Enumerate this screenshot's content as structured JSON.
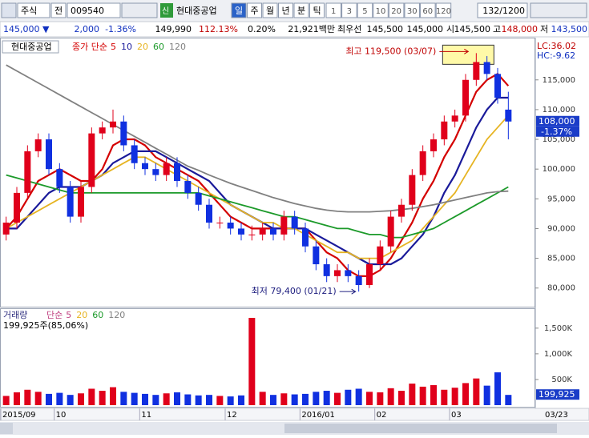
{
  "toolbar": {
    "market": "주식",
    "prefix": "전",
    "code": "009540",
    "badge": "신",
    "name": "현대중공업",
    "periods": [
      "일",
      "주",
      "월",
      "년",
      "분",
      "틱"
    ],
    "intervals": [
      "1",
      "3",
      "5",
      "10",
      "20",
      "30",
      "60",
      "120"
    ],
    "count": "132/1200"
  },
  "quote": {
    "price": "145,000 ▼",
    "change": "2,000",
    "change_rate": "-1.36%",
    "volume_prev": "149,990",
    "volume_ratio": "112.13%",
    "turnover": "0.20%",
    "amount": "21,921백만",
    "best_label": "최우선",
    "ask": "145,500",
    "bid": "145,000",
    "open_label": "시",
    "open": "145,500",
    "high_label": "고",
    "high": "148,000",
    "low_label": "저",
    "low": "143,500"
  },
  "chart_data": [
    {
      "type": "candlestick",
      "title": "현대중공업",
      "ma_prefix": "종가 단순",
      "categories": [
        "2015/09",
        null,
        null,
        null,
        null,
        "10",
        null,
        null,
        null,
        null,
        null,
        null,
        null,
        "11",
        null,
        null,
        null,
        null,
        null,
        null,
        null,
        "12",
        null,
        null,
        null,
        null,
        null,
        null,
        "2016/01",
        null,
        null,
        null,
        null,
        null,
        null,
        "02",
        null,
        null,
        null,
        null,
        null,
        null,
        "03",
        null,
        null,
        null,
        null,
        null
      ],
      "x_end_label": "03/23",
      "open": [
        89000,
        91000,
        96000,
        103000,
        105000,
        100000,
        97000,
        92000,
        97000,
        106000,
        107000,
        108000,
        104000,
        101000,
        100000,
        99000,
        101000,
        98000,
        96000,
        94000,
        91000,
        91000,
        90000,
        89000,
        89000,
        90000,
        89000,
        92000,
        90000,
        87000,
        84000,
        82000,
        83000,
        82000,
        80500,
        84000,
        87000,
        92000,
        94000,
        99000,
        103000,
        105000,
        108000,
        109000,
        115000,
        118000,
        116000,
        110000
      ],
      "high": [
        92000,
        97000,
        104000,
        106000,
        106000,
        101000,
        98000,
        98000,
        107000,
        108000,
        110000,
        109000,
        105000,
        102000,
        101000,
        102000,
        102000,
        99000,
        97000,
        95000,
        92000,
        92000,
        91000,
        90500,
        91000,
        91000,
        93000,
        93000,
        91000,
        88000,
        85000,
        84000,
        84000,
        83000,
        85000,
        88000,
        93000,
        95000,
        100000,
        104000,
        106000,
        109000,
        110000,
        116000,
        119500,
        119000,
        117000,
        113000
      ],
      "low": [
        88000,
        90000,
        95000,
        102000,
        99000,
        96000,
        91000,
        91000,
        96000,
        105000,
        106000,
        103000,
        100000,
        99000,
        98000,
        98000,
        97000,
        95000,
        93000,
        90000,
        90000,
        89000,
        88000,
        88000,
        88000,
        88000,
        88000,
        89000,
        86000,
        83000,
        81000,
        81000,
        81000,
        79400,
        80000,
        83000,
        86000,
        91000,
        93000,
        98000,
        102000,
        104000,
        107000,
        108000,
        114000,
        115000,
        111000,
        105000
      ],
      "close": [
        91000,
        96000,
        103000,
        105000,
        100000,
        97000,
        92000,
        97000,
        106000,
        107000,
        108000,
        104000,
        101000,
        100000,
        99000,
        101000,
        98000,
        96000,
        94000,
        91000,
        91000,
        90000,
        89000,
        89000,
        90000,
        89000,
        92000,
        90000,
        87000,
        84000,
        82000,
        83000,
        82000,
        80500,
        84000,
        87000,
        92000,
        94000,
        99000,
        103000,
        105000,
        108000,
        109000,
        115000,
        118000,
        116000,
        112000,
        108000
      ],
      "up_color": "#e0001b",
      "down_color": "#1030e0",
      "series": [
        {
          "name": "5",
          "color": "#d40000",
          "values": [
            90000,
            92000,
            95000,
            98000,
            99000,
            100000,
            99000,
            98000,
            98000,
            100000,
            104000,
            105000,
            105000,
            104000,
            102000,
            101000,
            100000,
            99000,
            98000,
            96000,
            94000,
            92000,
            91000,
            90000,
            90000,
            90000,
            90000,
            90000,
            90000,
            88000,
            86000,
            85000,
            83000,
            82000,
            82000,
            83000,
            85000,
            88000,
            91000,
            95000,
            98000,
            102000,
            105000,
            109000,
            113000,
            115000,
            116000,
            114000
          ]
        },
        {
          "name": "10",
          "color": "#1a1a9a",
          "values": [
            90000,
            90000,
            92000,
            94000,
            96000,
            97000,
            97000,
            97000,
            98000,
            99000,
            101000,
            102000,
            103000,
            103000,
            103000,
            102000,
            101000,
            100000,
            99000,
            98000,
            96000,
            94000,
            93000,
            92000,
            91000,
            90000,
            90000,
            90000,
            90000,
            89000,
            88000,
            87000,
            86000,
            85000,
            84000,
            84000,
            84000,
            85000,
            87000,
            89000,
            92000,
            96000,
            99000,
            103000,
            107000,
            110000,
            112000,
            112000
          ]
        },
        {
          "name": "20",
          "color": "#e6b422",
          "values": [
            90000,
            91000,
            92000,
            93000,
            94000,
            95000,
            96000,
            97000,
            98000,
            99000,
            100000,
            101000,
            102000,
            102000,
            101000,
            100000,
            99000,
            98000,
            97000,
            96000,
            95000,
            94000,
            93000,
            92000,
            91000,
            91000,
            90000,
            90000,
            89000,
            88000,
            87000,
            86000,
            86000,
            85000,
            85000,
            85000,
            86000,
            87000,
            88000,
            90000,
            92000,
            94000,
            96000,
            99000,
            102000,
            105000,
            107000,
            109000
          ]
        },
        {
          "name": "60",
          "color": "#1c9a2a",
          "values": [
            99000,
            98500,
            98000,
            97500,
            97000,
            96500,
            96000,
            96000,
            96000,
            96000,
            96000,
            96000,
            96000,
            96000,
            96000,
            96000,
            96000,
            96000,
            96000,
            95500,
            95000,
            94500,
            94000,
            93500,
            93000,
            92500,
            92000,
            92000,
            91500,
            91000,
            90500,
            90000,
            90000,
            89500,
            89000,
            89000,
            88500,
            88500,
            89000,
            89500,
            90000,
            91000,
            92000,
            93000,
            94000,
            95000,
            96000,
            97000
          ]
        },
        {
          "name": "120",
          "color": "#808080",
          "values": [
            117500,
            116500,
            115500,
            114500,
            113500,
            112500,
            111500,
            110500,
            109500,
            108500,
            107500,
            106500,
            105500,
            104500,
            103500,
            102500,
            101500,
            100500,
            99800,
            99000,
            98300,
            97600,
            97000,
            96400,
            95800,
            95200,
            94700,
            94200,
            93800,
            93400,
            93100,
            92900,
            92800,
            92800,
            92800,
            92900,
            93000,
            93200,
            93400,
            93700,
            94000,
            94400,
            94800,
            95200,
            95600,
            96000,
            96200,
            96300
          ]
        }
      ],
      "ylim": [
        77000,
        121700
      ],
      "yticks": [
        {
          "value": 80000,
          "label": "80,000"
        },
        {
          "value": 85000,
          "label": "85,000"
        },
        {
          "value": 90000,
          "label": "90,000"
        },
        {
          "value": 95000,
          "label": "95,000"
        },
        {
          "value": 100000,
          "label": "100,000"
        },
        {
          "value": 105000,
          "label": "105,000"
        },
        {
          "value": 110000,
          "label": "110,000"
        },
        {
          "value": 115000,
          "label": "115,000"
        }
      ],
      "lc_label": "LC:36.02",
      "hc_label": "HC:-9.62",
      "high_annotation": {
        "value": 119500,
        "label": "최고 119,500 (03/07)"
      },
      "low_annotation": {
        "value": 79400,
        "label": "최저 79,400 (01/21)"
      },
      "last_label": {
        "value": 108000,
        "label": "108,000"
      },
      "last_change": "-1.37%"
    },
    {
      "type": "bar",
      "title": "거래량",
      "ma_prefix": "단순",
      "ma_names": [
        "5",
        "20",
        "60",
        "120"
      ],
      "ma_colors": [
        "#c04080",
        "#e6b422",
        "#1c9a2a",
        "#808080"
      ],
      "summary": "199,925주(85,06%)",
      "values": [
        180000,
        250000,
        300000,
        260000,
        220000,
        240000,
        200000,
        230000,
        320000,
        280000,
        350000,
        260000,
        240000,
        220000,
        200000,
        230000,
        250000,
        210000,
        190000,
        200000,
        180000,
        170000,
        190000,
        1700000,
        260000,
        200000,
        230000,
        210000,
        220000,
        260000,
        280000,
        240000,
        300000,
        320000,
        260000,
        250000,
        330000,
        280000,
        420000,
        360000,
        390000,
        300000,
        340000,
        430000,
        520000,
        380000,
        640000,
        199925
      ],
      "ylim": [
        0,
        1840000
      ],
      "yticks": [
        {
          "value": 500000,
          "label": "500K"
        },
        {
          "value": 1000000,
          "label": "1,000K"
        },
        {
          "value": 1500000,
          "label": "1,500K"
        }
      ],
      "last_label": {
        "value": 199925,
        "label": "199,925"
      }
    }
  ]
}
